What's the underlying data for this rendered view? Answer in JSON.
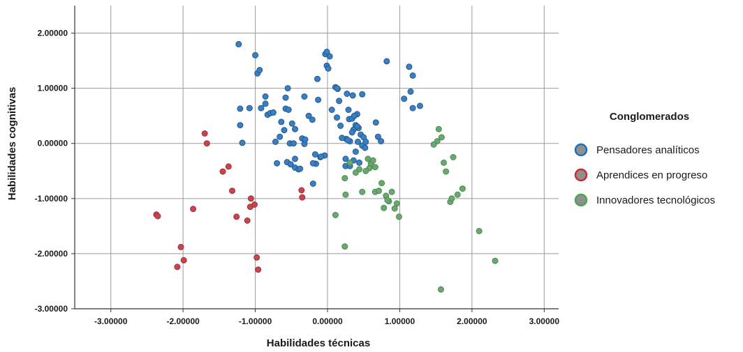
{
  "chart_data": {
    "type": "scatter",
    "xlabel": "Habilidades técnicas",
    "ylabel": "Habilidades cognitivas",
    "xlim": [
      -3.5,
      3.2
    ],
    "ylim": [
      -3.0,
      2.5
    ],
    "xticks": [
      -3,
      -2,
      -1,
      0,
      1,
      2,
      3
    ],
    "xtick_labels": [
      "-3.00000",
      "-2.00000",
      "-1.00000",
      "0.00000",
      "1.00000",
      "2.00000",
      "3.00000"
    ],
    "yticks": [
      -3,
      -2,
      -1,
      0,
      1,
      2
    ],
    "ytick_labels": [
      "-3.00000",
      "-2.00000",
      "-1.00000",
      "0.00000",
      "1.00000",
      "2.00000"
    ],
    "grid": true,
    "legend_position": "right",
    "legend_title": "Conglomerados",
    "series": [
      {
        "name": "Pensadores analíticos",
        "color": "#3b7fc0",
        "stroke": "#1f5a96",
        "legend_ring": "#1f6fc0",
        "x": [
          -1.23,
          -1.0,
          -0.97,
          -0.94,
          -0.86,
          -0.86,
          -1.08,
          -0.83,
          -0.79,
          -1.21,
          -1.21,
          -1.18,
          -0.92,
          -0.75,
          -0.64,
          -0.6,
          -0.56,
          -0.51,
          -0.45,
          -0.4,
          -0.55,
          -0.58,
          -0.66,
          -0.7,
          -0.72,
          -0.58,
          -0.54,
          -0.49,
          -0.45,
          -0.52,
          -0.47,
          -0.38,
          -0.35,
          -0.32,
          -0.32,
          -0.13,
          -0.14,
          -0.16,
          -0.2,
          -0.2,
          -0.1,
          -0.04,
          -0.01,
          0.01,
          0.03,
          -0.03,
          -0.01,
          0.06,
          0.11,
          0.14,
          0.16,
          0.27,
          0.29,
          0.35,
          0.41,
          0.48,
          0.13,
          0.18,
          0.26,
          0.3,
          0.34,
          0.37,
          0.43,
          0.36,
          0.39,
          0.31,
          0.28,
          0.34,
          0.41,
          0.46,
          0.48,
          0.52,
          0.39,
          0.5,
          0.53,
          0.25,
          0.2,
          0.25,
          0.36,
          0.31,
          0.42,
          0.44,
          0.67,
          0.7,
          0.74,
          0.82,
          1.13,
          1.18,
          1.15,
          1.06,
          1.28,
          1.18,
          -0.45,
          -0.31,
          -0.26,
          -0.21,
          -0.09,
          -0.17,
          0.13
        ],
        "y": [
          1.8,
          1.6,
          1.27,
          1.33,
          0.85,
          0.72,
          0.64,
          0.52,
          0.55,
          0.63,
          0.33,
          0.01,
          0.64,
          0.56,
          0.39,
          0.24,
          -0.34,
          -0.38,
          -0.44,
          -0.47,
          1.0,
          0.83,
          0.12,
          -0.36,
          0.03,
          0.63,
          0.61,
          0.36,
          0.26,
          0.0,
          0.0,
          -0.46,
          0.09,
          0.85,
          -0.01,
          0.79,
          1.17,
          -0.37,
          -0.36,
          -0.73,
          -0.25,
          -0.22,
          1.41,
          1.36,
          1.58,
          1.62,
          1.66,
          0.61,
          1.02,
          0.99,
          0.77,
          0.9,
          0.61,
          0.87,
          0.53,
          0.89,
          0.47,
          0.32,
          0.08,
          0.44,
          0.45,
          0.5,
          0.28,
          0.25,
          0.33,
          0.04,
          0.06,
          0.2,
          0.31,
          0.16,
          -0.04,
          -0.08,
          -0.15,
          0.11,
          0.03,
          -0.41,
          0.1,
          -0.28,
          -0.31,
          -0.41,
          0.03,
          -0.35,
          0.38,
          0.12,
          0.04,
          1.49,
          1.39,
          1.23,
          0.94,
          0.81,
          0.68,
          0.64,
          -0.28,
          0.07,
          0.5,
          0.43,
          -0.24,
          -0.2,
          1.0
        ]
      },
      {
        "name": "Aprendices en progreso",
        "color": "#c9444f",
        "stroke": "#a0303a",
        "legend_ring": "#d02a2a",
        "x": [
          -1.7,
          -1.67,
          -1.37,
          -1.45,
          -1.32,
          -1.26,
          -1.11,
          -1.07,
          -1.06,
          -0.98,
          -0.96,
          -1.01,
          -1.86,
          -2.37,
          -2.35,
          -1.99,
          -2.03,
          -2.08,
          -0.36,
          -0.35
        ],
        "y": [
          0.18,
          0.0,
          -0.42,
          -0.51,
          -0.86,
          -1.33,
          -1.4,
          -1.15,
          -1.0,
          -2.07,
          -2.29,
          -1.11,
          -1.19,
          -1.29,
          -1.32,
          -2.12,
          -1.88,
          -2.24,
          -0.85,
          -0.98
        ]
      },
      {
        "name": "Innovadores tecnológicos",
        "color": "#6aa870",
        "stroke": "#4c8a52",
        "legend_ring": "#4aa84a",
        "x": [
          1.54,
          1.58,
          1.52,
          1.47,
          1.61,
          1.64,
          1.7,
          1.74,
          1.8,
          1.87,
          1.57,
          1.72,
          2.1,
          2.32,
          0.56,
          0.6,
          0.63,
          0.66,
          0.58,
          0.53,
          0.44,
          0.39,
          0.31,
          0.24,
          0.25,
          0.48,
          0.66,
          0.71,
          0.75,
          0.78,
          0.81,
          0.85,
          0.93,
          0.96,
          0.99,
          0.89,
          0.83,
          0.11,
          0.24
        ],
        "y": [
          0.26,
          0.11,
          0.04,
          -0.02,
          -0.35,
          -0.51,
          -1.06,
          -0.25,
          -0.93,
          -0.82,
          -2.65,
          -1.0,
          -1.59,
          -2.13,
          -0.28,
          -0.37,
          -0.31,
          -0.43,
          -0.45,
          -0.5,
          -0.47,
          -0.53,
          -0.35,
          -0.63,
          -0.93,
          -0.88,
          -0.88,
          -0.86,
          -0.72,
          -1.17,
          -0.95,
          -1.05,
          -1.18,
          -1.09,
          -1.33,
          -0.88,
          -1.03,
          -1.3,
          -1.87
        ]
      }
    ]
  }
}
